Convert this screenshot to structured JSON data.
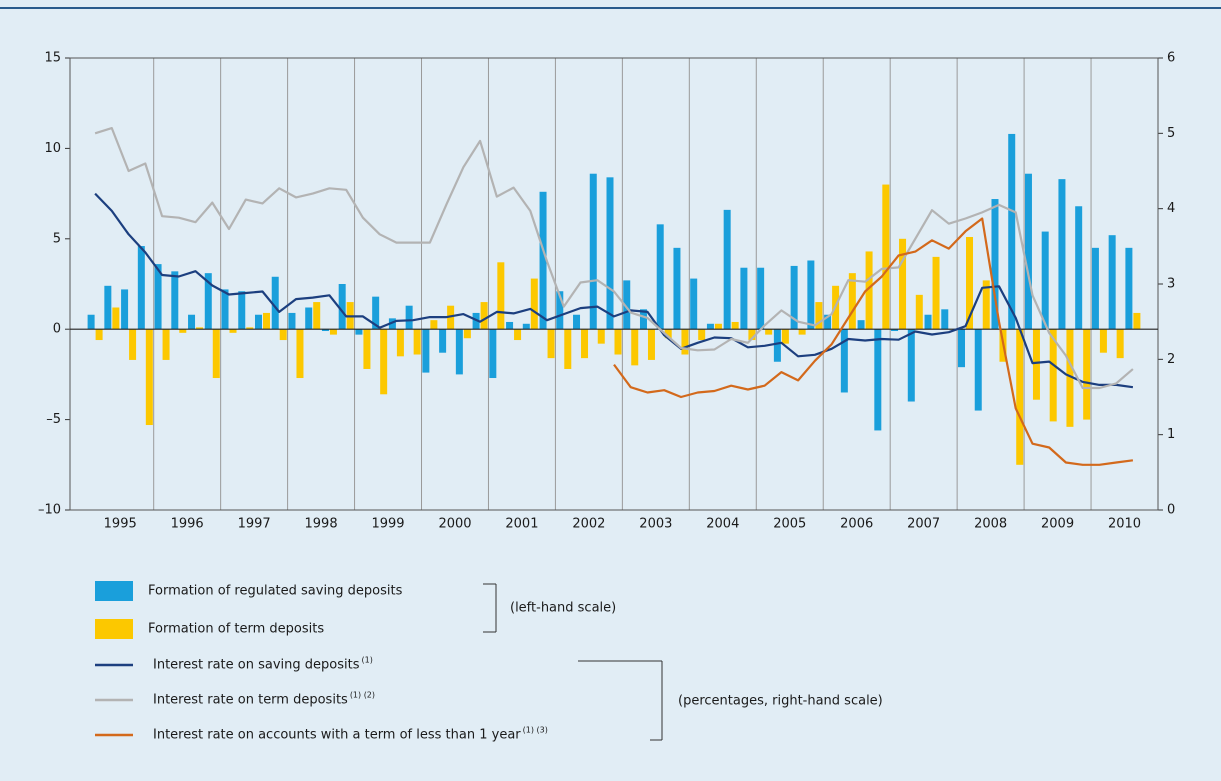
{
  "chart_data": {
    "type": "bar",
    "x": [
      1995.125,
      1995.375,
      1995.625,
      1995.875,
      1996.125,
      1996.375,
      1996.625,
      1996.875,
      1997.125,
      1997.375,
      1997.625,
      1997.875,
      1998.125,
      1998.375,
      1998.625,
      1998.875,
      1999.125,
      1999.375,
      1999.625,
      1999.875,
      2000.125,
      2000.375,
      2000.625,
      2000.875,
      2001.125,
      2001.375,
      2001.625,
      2001.875,
      2002.125,
      2002.375,
      2002.625,
      2002.875,
      2003.125,
      2003.375,
      2003.625,
      2003.875,
      2004.125,
      2004.375,
      2004.625,
      2004.875,
      2005.125,
      2005.375,
      2005.625,
      2005.875,
      2006.125,
      2006.375,
      2006.625,
      2006.875,
      2007.125,
      2007.375,
      2007.625,
      2007.875,
      2008.125,
      2008.375,
      2008.625,
      2008.875,
      2009.125,
      2009.375,
      2009.625,
      2009.875,
      2010.125,
      2010.375,
      2010.625
    ],
    "xlim": [
      1994.75,
      2011
    ],
    "xticks": [
      {
        "value": 1995.5,
        "label": "1995"
      },
      {
        "value": 1996.5,
        "label": "1996"
      },
      {
        "value": 1997.5,
        "label": "1997"
      },
      {
        "value": 1998.5,
        "label": "1998"
      },
      {
        "value": 1999.5,
        "label": "1999"
      },
      {
        "value": 2000.5,
        "label": "2000"
      },
      {
        "value": 2001.5,
        "label": "2001"
      },
      {
        "value": 2002.5,
        "label": "2002"
      },
      {
        "value": 2003.5,
        "label": "2003"
      },
      {
        "value": 2004.5,
        "label": "2004"
      },
      {
        "value": 2005.5,
        "label": "2005"
      },
      {
        "value": 2006.5,
        "label": "2006"
      },
      {
        "value": 2007.5,
        "label": "2007"
      },
      {
        "value": 2008.5,
        "label": "2008"
      },
      {
        "value": 2009.5,
        "label": "2009"
      },
      {
        "value": 2010.5,
        "label": "2010"
      }
    ],
    "ylim": [
      -10,
      15
    ],
    "yticks": [
      {
        "value": -10,
        "label": "–10"
      },
      {
        "value": -5,
        "label": "–5"
      },
      0,
      5,
      10,
      15
    ],
    "y2lim": [
      0,
      6
    ],
    "y2ticks": [
      0,
      1,
      2,
      3,
      4,
      5,
      6
    ],
    "left_scale_label": "(left-hand scale)",
    "right_scale_label": "(percentages, right-hand scale)",
    "series": [
      {
        "name": "Formation of regulated saving deposits",
        "type": "bar",
        "color": "#1a9fdb",
        "values": [
          0.8,
          2.4,
          2.2,
          4.6,
          3.6,
          3.2,
          0.8,
          3.1,
          2.2,
          2.1,
          0.8,
          2.9,
          0.9,
          1.2,
          -0.1,
          2.5,
          -0.3,
          1.8,
          0.6,
          1.3,
          -2.4,
          -1.3,
          -2.5,
          0.9,
          -2.7,
          0.4,
          0.3,
          7.6,
          2.1,
          0.8,
          8.6,
          8.4,
          2.7,
          1.1,
          5.8,
          4.5,
          2.8,
          0.3,
          6.6,
          3.4,
          3.4,
          -1.8,
          3.5,
          3.8,
          0.8,
          -3.5,
          0.5,
          -5.6,
          -0.1,
          -4.0,
          0.8,
          1.1,
          -2.1,
          -4.5,
          7.2,
          10.8,
          8.6,
          5.4,
          8.3,
          6.8,
          4.5,
          5.2,
          4.5
        ]
      },
      {
        "name": "Formation of term deposits",
        "type": "bar",
        "color": "#fcc800",
        "values": [
          -0.6,
          1.2,
          -1.7,
          -5.3,
          -1.7,
          -0.2,
          0.1,
          -2.7,
          -0.2,
          0.1,
          0.9,
          -0.6,
          -2.7,
          1.5,
          -0.3,
          1.5,
          -2.2,
          -3.6,
          -1.5,
          -1.4,
          0.5,
          1.3,
          -0.5,
          1.5,
          3.7,
          -0.6,
          2.8,
          -1.6,
          -2.2,
          -1.6,
          -0.8,
          -1.4,
          -2.0,
          -1.7,
          -0.5,
          -1.4,
          -0.6,
          0.3,
          0.4,
          -0.6,
          -0.3,
          -0.8,
          -0.3,
          1.5,
          2.4,
          3.1,
          4.3,
          8.0,
          5.0,
          1.9,
          4.0,
          0.0,
          5.1,
          2.7,
          -1.8,
          -7.5,
          -3.9,
          -5.1,
          -5.4,
          -5.0,
          -1.3,
          -1.6,
          0.9
        ]
      },
      {
        "name": "Interest rate on saving deposits",
        "notes": "(1)",
        "type": "line",
        "axis": "y2",
        "color": "#1c3f7f",
        "values": [
          4.2,
          3.97,
          3.66,
          3.42,
          3.12,
          3.1,
          3.17,
          2.98,
          2.86,
          2.88,
          2.9,
          2.63,
          2.8,
          2.82,
          2.85,
          2.57,
          2.57,
          2.42,
          2.51,
          2.52,
          2.56,
          2.56,
          2.6,
          2.5,
          2.63,
          2.61,
          2.67,
          2.52,
          2.6,
          2.68,
          2.7,
          2.57,
          2.65,
          2.63,
          2.32,
          2.14,
          2.22,
          2.29,
          2.28,
          2.16,
          2.18,
          2.22,
          2.04,
          2.06,
          2.14,
          2.27,
          2.25,
          2.27,
          2.26,
          2.37,
          2.33,
          2.36,
          2.44,
          2.95,
          2.97,
          2.55,
          1.95,
          1.97,
          1.8,
          1.7,
          1.66,
          1.66,
          1.63
        ]
      },
      {
        "name": "Interest rate on term deposits",
        "notes": "(1) (2)",
        "type": "line",
        "axis": "y2",
        "color": "#b3b3b3",
        "values": [
          5.0,
          5.07,
          4.5,
          4.6,
          3.9,
          3.88,
          3.82,
          4.08,
          3.73,
          4.12,
          4.07,
          4.27,
          4.15,
          4.2,
          4.27,
          4.25,
          3.88,
          3.66,
          3.55,
          3.55,
          3.55,
          4.06,
          4.55,
          4.9,
          4.16,
          4.28,
          3.97,
          3.3,
          2.7,
          3.02,
          3.05,
          2.9,
          2.62,
          2.55,
          2.35,
          2.15,
          2.12,
          2.13,
          2.27,
          2.22,
          2.45,
          2.65,
          2.5,
          2.45,
          2.6,
          3.05,
          3.03,
          3.2,
          3.22,
          3.6,
          3.98,
          3.8,
          3.87,
          3.95,
          4.05,
          3.95,
          2.85,
          2.35,
          2.05,
          1.62,
          1.62,
          1.68,
          1.87
        ]
      },
      {
        "name": "Interest rate on accounts with a term of less than 1 year",
        "notes": "(1) (3)",
        "type": "line",
        "axis": "y2",
        "color": "#d3691b",
        "values": [
          null,
          null,
          null,
          null,
          null,
          null,
          null,
          null,
          null,
          null,
          null,
          null,
          null,
          null,
          null,
          null,
          null,
          null,
          null,
          null,
          null,
          null,
          null,
          null,
          null,
          null,
          null,
          null,
          null,
          null,
          null,
          1.93,
          1.63,
          1.56,
          1.59,
          1.5,
          1.56,
          1.58,
          1.65,
          1.6,
          1.65,
          1.83,
          1.72,
          1.98,
          2.2,
          2.55,
          2.9,
          3.1,
          3.38,
          3.43,
          3.58,
          3.47,
          3.7,
          3.87,
          2.5,
          1.35,
          0.88,
          0.83,
          0.63,
          0.6,
          0.6,
          0.63,
          0.66
        ]
      }
    ]
  }
}
